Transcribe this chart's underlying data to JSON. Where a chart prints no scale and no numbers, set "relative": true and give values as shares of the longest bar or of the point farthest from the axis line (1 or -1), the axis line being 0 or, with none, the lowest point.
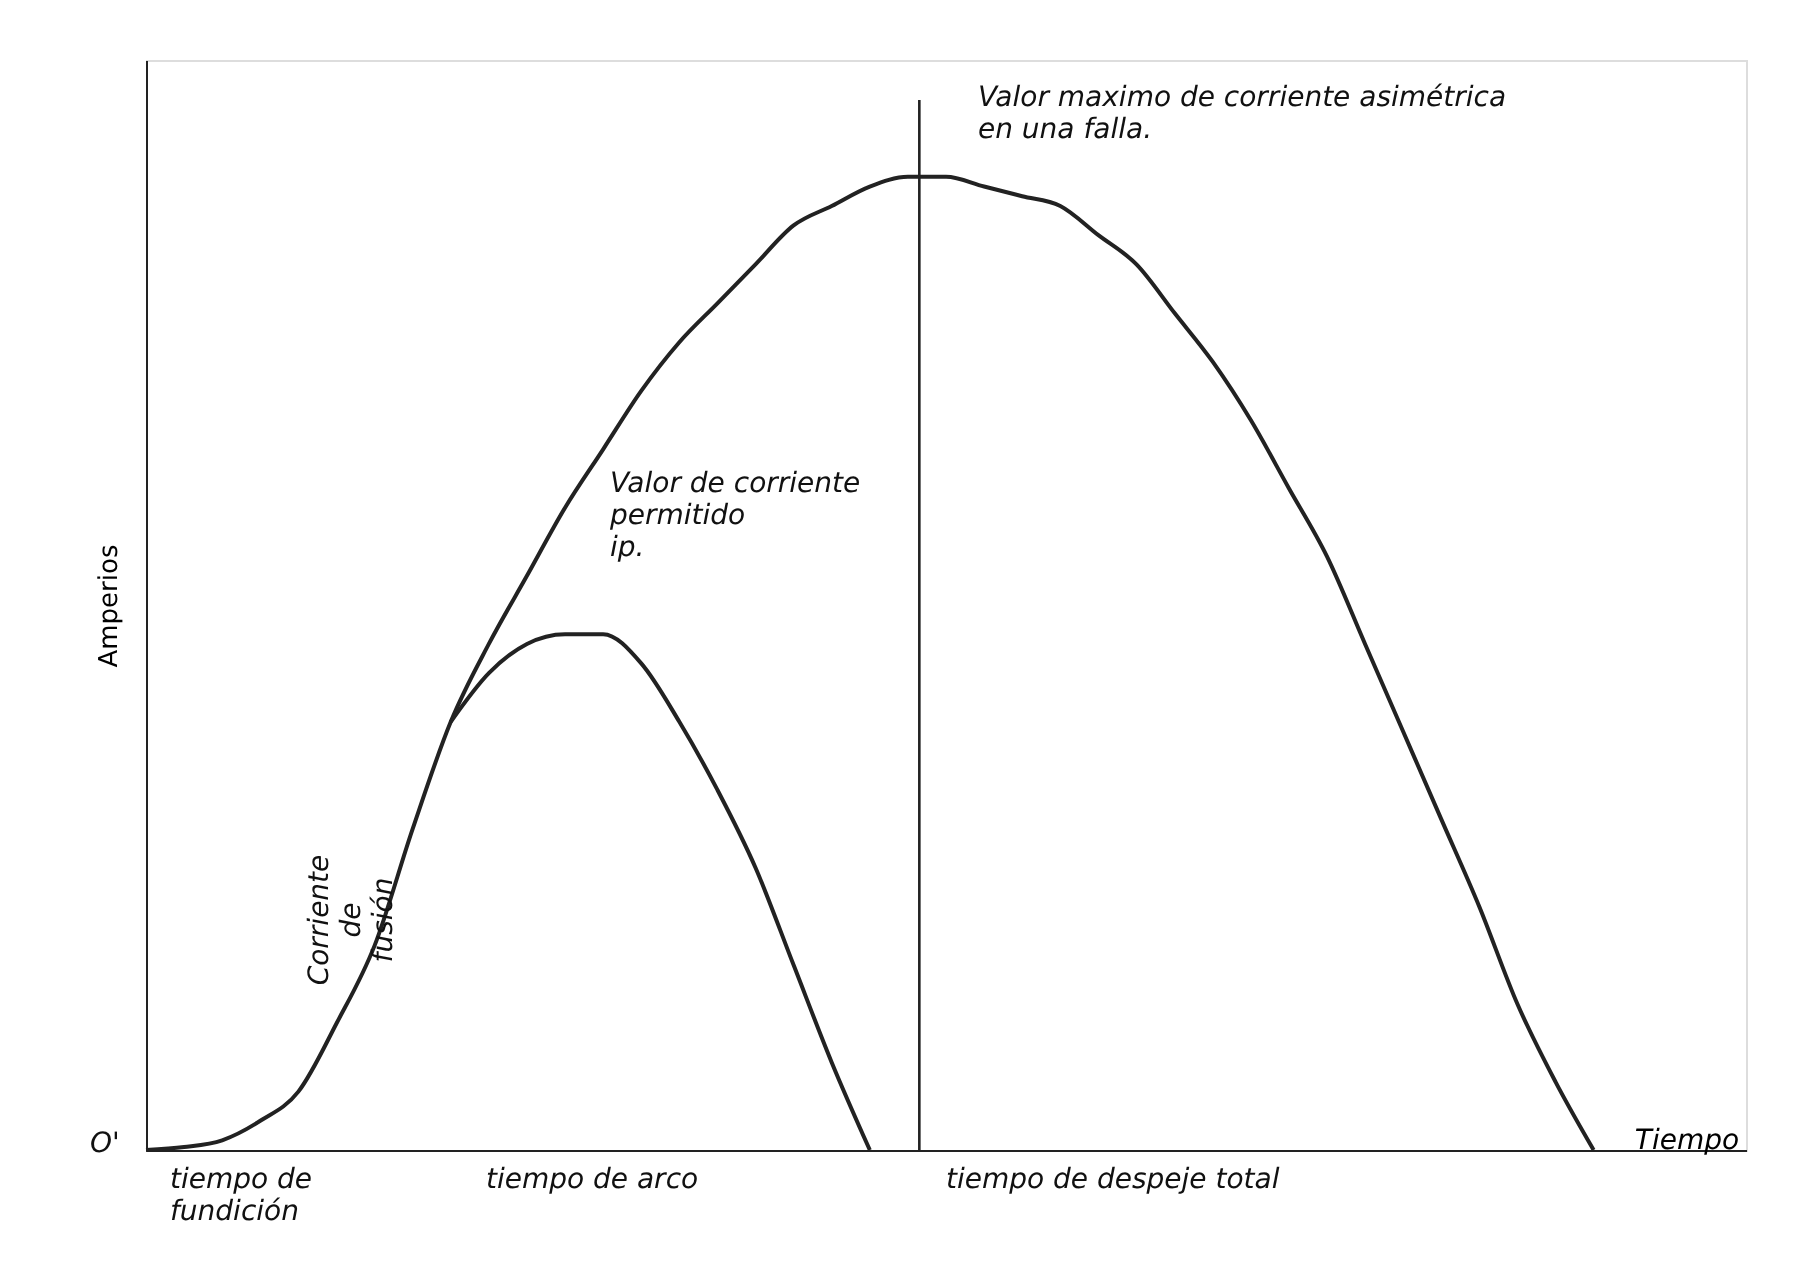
{
  "chart_data": {
    "type": "line",
    "relative": true,
    "ylabel": "Amperios",
    "xlabel": "Tiempo",
    "grid": false,
    "marker": "none",
    "line_style": "solid",
    "categories": [
      null,
      null,
      null,
      null,
      null,
      null,
      null,
      null,
      null,
      null,
      null,
      null,
      null,
      null,
      null,
      null,
      null,
      null,
      null,
      null,
      null,
      null,
      null,
      null,
      null,
      null,
      null,
      null,
      null,
      null,
      null,
      null,
      null,
      null,
      null,
      null,
      null,
      null,
      null
    ],
    "series": [
      {
        "color": "#222222",
        "values": [
          0,
          0.003,
          0.01,
          0.03,
          0.06,
          0.13,
          0.21,
          0.33,
          0.44,
          0.52,
          0.59,
          0.66,
          0.72,
          0.78,
          0.83,
          0.87,
          0.91,
          0.95,
          0.97,
          0.99,
          1,
          1,
          0.99,
          0.98,
          0.97,
          0.94,
          0.91,
          0.86,
          0.81,
          0.75,
          0.68,
          0.61,
          0.52,
          0.43,
          0.34,
          0.25,
          0.15,
          0.07,
          0
        ]
      },
      {
        "color": "#222222",
        "values": [
          null,
          null,
          null,
          null,
          null,
          null,
          null,
          null,
          0.44,
          0.49,
          0.52,
          0.53,
          0.53,
          0.5,
          0.44,
          0.37,
          0.29,
          0.19,
          0.09,
          0,
          null,
          null,
          null,
          null,
          null,
          null,
          null,
          null,
          null,
          null,
          null,
          null,
          null,
          null,
          null,
          null,
          null,
          null,
          null
        ]
      }
    ],
    "annotations": [
      "Valor maximo de corriente asimétrica\nen una falla.",
      "Valor de corriente\npermitido\nip.",
      "Corriente\nde\nfusión",
      "tiempo de\nfundición",
      "tiempo de arco",
      "tiempo de despeje total",
      "O'"
    ]
  }
}
